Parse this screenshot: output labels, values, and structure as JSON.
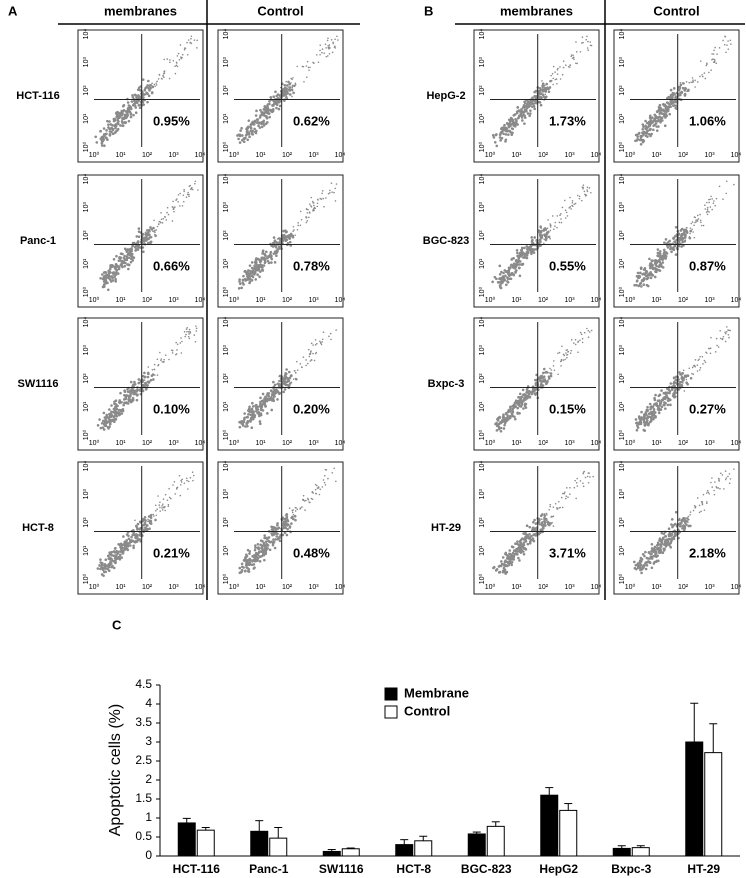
{
  "panel_a": {
    "label": "A",
    "columns": [
      "membranes",
      "Control"
    ],
    "rows": [
      {
        "name": "HCT-116",
        "values": [
          "0.95%",
          "0.62%"
        ]
      },
      {
        "name": "Panc-1",
        "values": [
          "0.66%",
          "0.78%"
        ]
      },
      {
        "name": "SW1116",
        "values": [
          "0.10%",
          "0.20%"
        ]
      },
      {
        "name": "HCT-8",
        "values": [
          "0.21%",
          "0.48%"
        ]
      }
    ]
  },
  "panel_b": {
    "label": "B",
    "columns": [
      "membranes",
      "Control"
    ],
    "rows": [
      {
        "name": "HepG-2",
        "values": [
          "1.73%",
          "1.06%"
        ]
      },
      {
        "name": "BGC-823",
        "values": [
          "0.55%",
          "0.87%"
        ]
      },
      {
        "name": "Bxpc-3",
        "values": [
          "0.15%",
          "0.27%"
        ]
      },
      {
        "name": "HT-29",
        "values": [
          "3.71%",
          "2.18%"
        ]
      }
    ]
  },
  "flow_axis_ticks": [
    "10⁰",
    "10¹",
    "10²",
    "10³",
    "10⁴"
  ],
  "chart_data": {
    "type": "bar",
    "label": "C",
    "y_label": "Apoptotic cells (%)",
    "categories": [
      "HCT-116",
      "Panc-1",
      "SW1116",
      "HCT-8",
      "BGC-823",
      "HepG2",
      "Bxpc-3",
      "HT-29"
    ],
    "series": [
      {
        "name": "Membrane",
        "color": "#000000",
        "values": [
          0.87,
          0.65,
          0.12,
          0.3,
          0.58,
          1.6,
          0.2,
          3.0
        ],
        "errors": [
          0.12,
          0.28,
          0.05,
          0.13,
          0.05,
          0.2,
          0.07,
          1.02
        ]
      },
      {
        "name": "Control",
        "color": "#ffffff",
        "values": [
          0.68,
          0.47,
          0.19,
          0.4,
          0.78,
          1.2,
          0.22,
          2.72
        ],
        "errors": [
          0.07,
          0.28,
          0.02,
          0.12,
          0.12,
          0.18,
          0.05,
          0.76
        ]
      }
    ],
    "ylim": [
      0,
      4.5
    ],
    "yticks": [
      0,
      0.5,
      1,
      1.5,
      2,
      2.5,
      3,
      3.5,
      4,
      4.5
    ]
  }
}
